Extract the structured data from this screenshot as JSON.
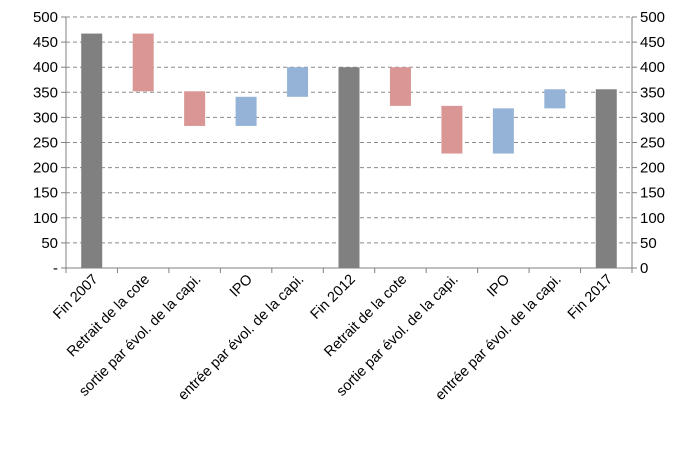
{
  "chart_data": {
    "type": "bar",
    "subtype": "waterfall",
    "categories": [
      "Fin 2007",
      "Retrait de la cote",
      "sortie par évol. de la capi.",
      "IPO",
      "entrée par évol. de la capi.",
      "Fin 2012",
      "Retrait de la cote",
      "sortie par évol. de la capi.",
      "IPO",
      "entrée par évol. de la capi.",
      "Fin 2017"
    ],
    "bars": [
      {
        "kind": "total",
        "low": 0,
        "high": 467
      },
      {
        "kind": "decrease",
        "low": 352,
        "high": 467
      },
      {
        "kind": "decrease",
        "low": 283,
        "high": 352
      },
      {
        "kind": "increase",
        "low": 283,
        "high": 341
      },
      {
        "kind": "increase",
        "low": 341,
        "high": 400
      },
      {
        "kind": "total",
        "low": 0,
        "high": 400
      },
      {
        "kind": "decrease",
        "low": 323,
        "high": 400
      },
      {
        "kind": "decrease",
        "low": 228,
        "high": 323
      },
      {
        "kind": "increase",
        "low": 228,
        "high": 318
      },
      {
        "kind": "increase",
        "low": 318,
        "high": 356
      },
      {
        "kind": "total",
        "low": 0,
        "high": 356
      }
    ],
    "ylim": [
      0,
      500
    ],
    "left_ticks": [
      "-",
      "50",
      "100",
      "150",
      "200",
      "250",
      "300",
      "350",
      "400",
      "450",
      "500"
    ],
    "right_ticks": [
      "0",
      "50",
      "100",
      "150",
      "200",
      "250",
      "300",
      "350",
      "400",
      "450",
      "500"
    ],
    "colors": {
      "total": "#808080",
      "decrease": "#d99694",
      "increase": "#95b3d7"
    },
    "grid": true,
    "legend": "none"
  }
}
